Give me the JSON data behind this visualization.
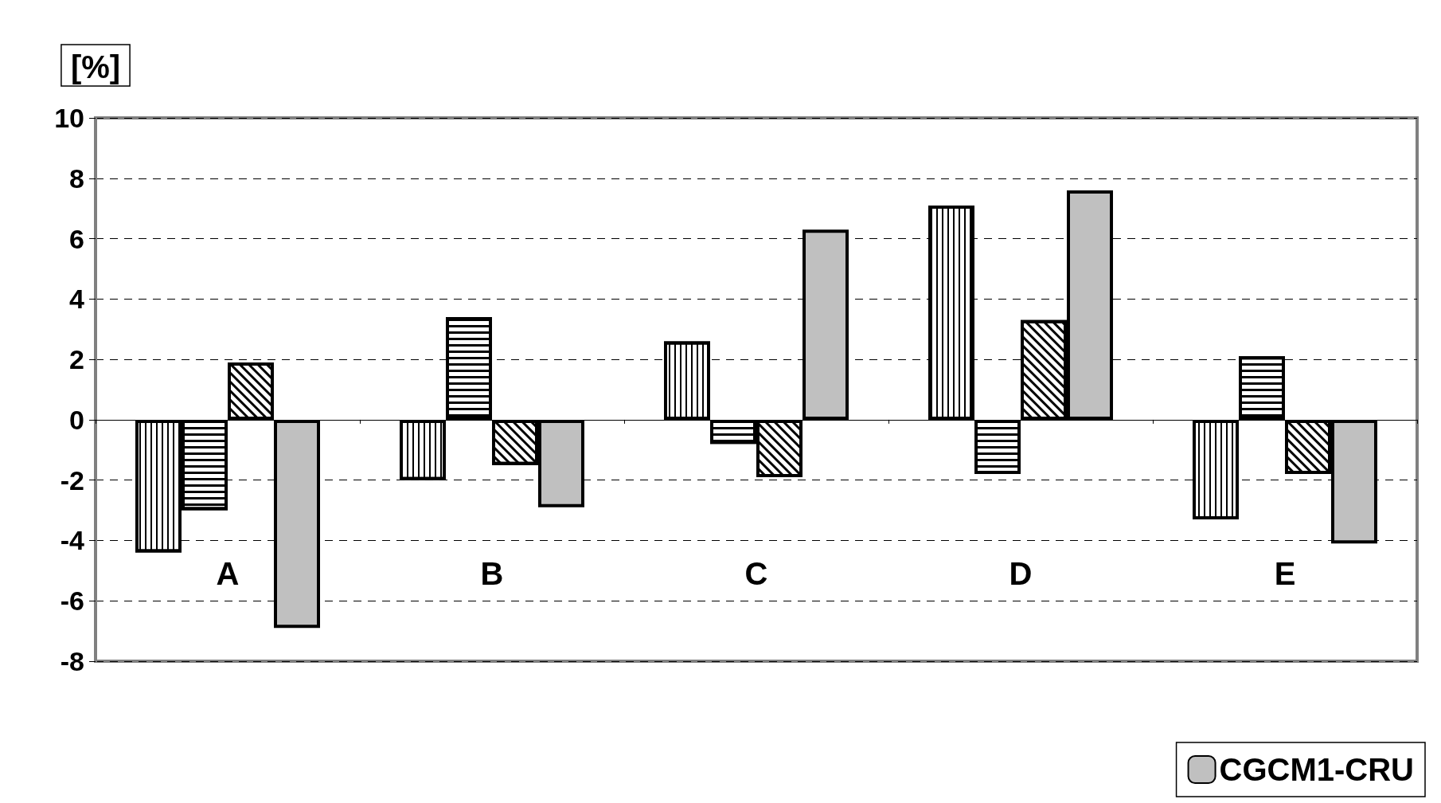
{
  "chart_data": {
    "type": "bar",
    "ylabel": "[%]",
    "categories": [
      "A",
      "B",
      "C",
      "D",
      "E"
    ],
    "series": [
      {
        "color": "#ffffff",
        "values": [
          -4.4,
          -2.0,
          2.6,
          7.1,
          -3.3
        ]
      },
      {
        "color": "#ffffff",
        "values": [
          -3.0,
          3.4,
          -0.8,
          -1.8,
          2.1
        ]
      },
      {
        "color": "#ffffff",
        "values": [
          1.9,
          -1.5,
          -1.9,
          3.3,
          -1.8
        ]
      },
      {
        "name": "CGCM1-CRU",
        "color": "#c0c0c0",
        "values": [
          -6.9,
          -2.9,
          6.3,
          7.6,
          -4.1
        ]
      }
    ],
    "ylim": [
      -8,
      10
    ],
    "yticks": [
      -8,
      -6,
      -4,
      -2,
      0,
      2,
      4,
      6,
      8,
      10
    ],
    "grid": "y",
    "legend": "bottom"
  }
}
